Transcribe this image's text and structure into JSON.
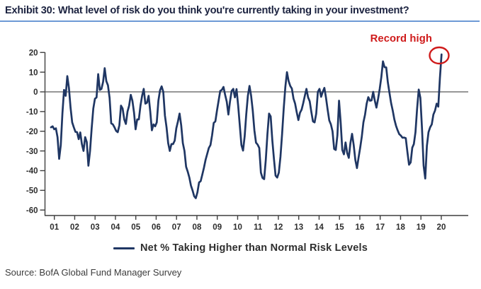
{
  "header": {
    "title": "Exhibit 30: What level of risk do you think you're currently taking in your investment?"
  },
  "annotation": {
    "record_high": "Record high",
    "color": "#CF1A1A"
  },
  "legend": {
    "label": "Net % Taking Higher than Normal Risk Levels"
  },
  "source": {
    "text": "Source: BofA Global Fund Manager Survey"
  },
  "colors": {
    "series_navy": "#1F3663",
    "title_navy": "#1C2340",
    "underline_blue": "#6D9AD6",
    "axis_gray": "#3F3F3F",
    "zero_line_gray": "#595959",
    "annotation_red": "#CF1A1A"
  },
  "chart_data": {
    "type": "line",
    "title": "Exhibit 30: What level of risk do you think you're currently taking in your investment?",
    "xlabel": "",
    "ylabel": "",
    "ylim": [
      -60,
      20
    ],
    "grid": "zero-line-only",
    "legend_position": "bottom-center",
    "x_tick_labels": [
      "01",
      "02",
      "03",
      "04",
      "05",
      "06",
      "07",
      "08",
      "09",
      "10",
      "11",
      "12",
      "13",
      "14",
      "15",
      "16",
      "17",
      "18",
      "19",
      "20"
    ],
    "y_ticks": [
      20,
      10,
      0,
      -10,
      -20,
      -30,
      -40,
      -50,
      -60
    ],
    "x_frequency": "monthly, 2001-2020",
    "annotations": [
      {
        "text": "Record high",
        "target": "last point",
        "value": 19
      }
    ],
    "series": [
      {
        "name": "Net % Taking Higher than Normal Risk Levels",
        "color": "#1F3663",
        "values": [
          -18,
          -17.5,
          -19,
          -18.5,
          -23,
          -34,
          -27,
          -11,
          1,
          -2,
          8,
          2,
          -8,
          -15.5,
          -18,
          -20.3,
          -20.5,
          -24,
          -20.6,
          -26.5,
          -30,
          -23,
          -25.5,
          -37.5,
          -30,
          -18.5,
          -8.5,
          -3.5,
          -2.8,
          9,
          1,
          1.5,
          5,
          12,
          5.4,
          3.3,
          -3,
          -16,
          -16.5,
          -18,
          -19.8,
          -20.5,
          -17,
          -7,
          -8.5,
          -14,
          -16.3,
          -10,
          -7,
          -1.5,
          -4.5,
          -10.5,
          -19,
          -14,
          -14,
          -7,
          -2,
          1.5,
          -6,
          -5.5,
          -2,
          -10,
          -19.5,
          -16.5,
          -17.5,
          -15.5,
          -4.5,
          0.8,
          2.8,
          0,
          -12,
          -18,
          -26,
          -30,
          -26.5,
          -26.5,
          -24.8,
          -18.5,
          -15,
          -11,
          -17,
          -26,
          -30,
          -38,
          -40.5,
          -43.5,
          -47.5,
          -50,
          -53,
          -54,
          -51,
          -46,
          -45.3,
          -42,
          -38.5,
          -34.5,
          -31.5,
          -28.5,
          -27,
          -22,
          -15.8,
          -15,
          -9.5,
          -4.5,
          0.5,
          1,
          2.5,
          -1.5,
          -5,
          -11.5,
          -4.8,
          0.5,
          1.5,
          -2.8,
          1.4,
          -7,
          -17,
          -27,
          -29.8,
          -22.5,
          -11.5,
          -2,
          3,
          -2,
          -9.5,
          -19.5,
          -25.8,
          -26.8,
          -28.5,
          -41,
          -43.7,
          -44.3,
          -34.5,
          -21.5,
          -11,
          -12.5,
          -24.5,
          -34,
          -42.5,
          -43.5,
          -41,
          -33,
          -21.5,
          -8.5,
          2.5,
          10,
          5.5,
          3,
          1.7,
          -3.4,
          -6,
          -10.4,
          -14.3,
          -10.6,
          -9,
          -5.8,
          -2,
          1.5,
          -2.8,
          -4.8,
          -10.2,
          -15,
          -15.5,
          -11,
          0,
          1.5,
          -2.5,
          0,
          2,
          -3,
          -9,
          -14.5,
          -16.5,
          -20,
          -29,
          -29.5,
          -22,
          -4.5,
          -15.5,
          -29.5,
          -31.7,
          -25.7,
          -31,
          -33.5,
          -25.9,
          -21.3,
          -27,
          -34.5,
          -38.7,
          -33.5,
          -28.5,
          -22.8,
          -15.5,
          -11.6,
          -6,
          -2.7,
          -4.5,
          -4.3,
          0,
          -4.5,
          -8,
          -3.6,
          1.5,
          7.5,
          15.5,
          12.5,
          12.4,
          4.8,
          -0.5,
          -5.7,
          -9.5,
          -14,
          -17.2,
          -19.5,
          -21.5,
          -22.2,
          -23.3,
          -23.2,
          -23.5,
          -30.5,
          -37,
          -35.8,
          -28.3,
          -26.5,
          -20.5,
          -8.5,
          1.2,
          -3,
          -18.5,
          -37.5,
          -44,
          -27.5,
          -20.5,
          -18,
          -16.5,
          -11.5,
          -9.5,
          -6,
          -7.5,
          7,
          19
        ]
      }
    ]
  }
}
